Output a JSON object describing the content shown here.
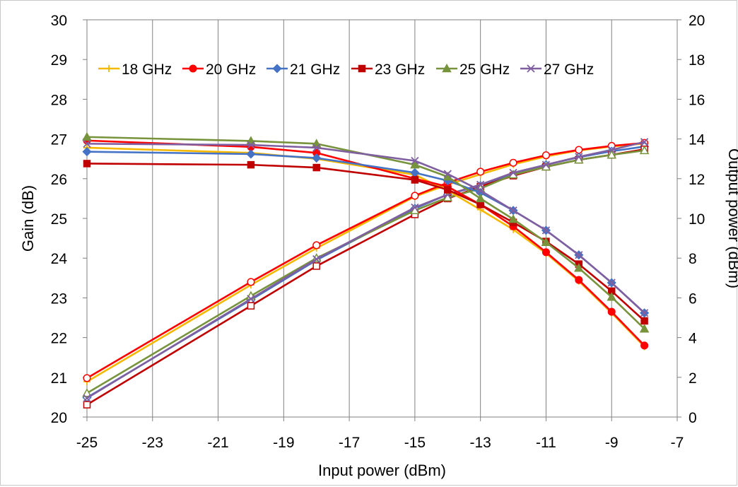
{
  "chart_data": {
    "type": "line",
    "title": "",
    "xlabel": "Input power (dBm)",
    "ylabel": "Gain (dB)",
    "y2label": "Output power (dBm)",
    "xlim": [
      -25,
      -7
    ],
    "ylim": [
      20,
      30
    ],
    "y2lim": [
      0,
      20
    ],
    "xticks": [
      "-25",
      "-23",
      "-21",
      "-19",
      "-17",
      "-15",
      "-13",
      "-11",
      "-9",
      "-7"
    ],
    "yticks": [
      "20",
      "21",
      "22",
      "23",
      "24",
      "25",
      "26",
      "27",
      "28",
      "29",
      "30"
    ],
    "y2ticks": [
      "0",
      "2",
      "4",
      "6",
      "8",
      "10",
      "12",
      "14",
      "16",
      "18",
      "20"
    ],
    "grid": "vertical",
    "legend_position": "top",
    "x": [
      -25,
      -20,
      -18,
      -15,
      -14,
      -13,
      -12,
      -11,
      -10,
      -9,
      -8
    ],
    "series": [
      {
        "name": "18 GHz",
        "color": "#f5b800",
        "marker": "plus",
        "gain": [
          26.78,
          26.65,
          26.5,
          26.1,
          25.7,
          25.22,
          24.72,
          24.12,
          23.42,
          22.62,
          21.77
        ],
        "output_power": [
          1.78,
          6.65,
          8.5,
          11.1,
          11.7,
          12.22,
          12.72,
          13.12,
          13.42,
          13.62,
          13.77
        ]
      },
      {
        "name": "20 GHz",
        "color": "#ff0000",
        "marker": "circle",
        "gain": [
          26.96,
          26.8,
          26.65,
          26.0,
          25.8,
          25.35,
          24.8,
          24.15,
          23.45,
          22.65,
          21.8
        ],
        "output_power": [
          1.96,
          6.8,
          8.65,
          11.14,
          11.8,
          12.35,
          12.8,
          13.18,
          13.45,
          13.65,
          13.8
        ]
      },
      {
        "name": "21 GHz",
        "color": "#4472c4",
        "marker": "diamond",
        "gain": [
          26.68,
          26.62,
          26.52,
          26.15,
          25.95,
          25.65,
          25.2,
          24.7,
          24.08,
          23.38,
          22.62
        ],
        "output_power": [
          0.98,
          5.9,
          7.9,
          10.5,
          11.2,
          11.65,
          12.2,
          12.7,
          13.08,
          13.38,
          13.62
        ]
      },
      {
        "name": "23 GHz",
        "color": "#c00000",
        "marker": "square",
        "gain": [
          26.38,
          26.35,
          26.28,
          25.97,
          25.72,
          25.35,
          24.9,
          24.42,
          23.85,
          23.17,
          22.42
        ],
        "output_power": [
          0.62,
          5.6,
          7.6,
          10.2,
          11.0,
          11.6,
          12.15,
          12.6,
          12.95,
          13.2,
          13.48
        ]
      },
      {
        "name": "25 GHz",
        "color": "#77933c",
        "marker": "triangle",
        "gain": [
          27.05,
          26.95,
          26.88,
          26.35,
          26.05,
          25.5,
          24.98,
          24.4,
          23.75,
          23.02,
          22.22
        ],
        "output_power": [
          1.2,
          6.1,
          8.0,
          10.4,
          11.05,
          11.5,
          12.2,
          12.6,
          12.95,
          13.2,
          13.42
        ]
      },
      {
        "name": "27 GHz",
        "color": "#7f5fa0",
        "marker": "x",
        "gain": [
          26.88,
          26.85,
          26.78,
          26.45,
          26.12,
          25.7,
          25.2,
          24.7,
          24.08,
          23.38,
          22.62
        ],
        "output_power": [
          0.95,
          5.95,
          7.95,
          10.55,
          11.2,
          11.7,
          12.3,
          12.7,
          13.1,
          13.45,
          13.85
        ]
      }
    ]
  }
}
